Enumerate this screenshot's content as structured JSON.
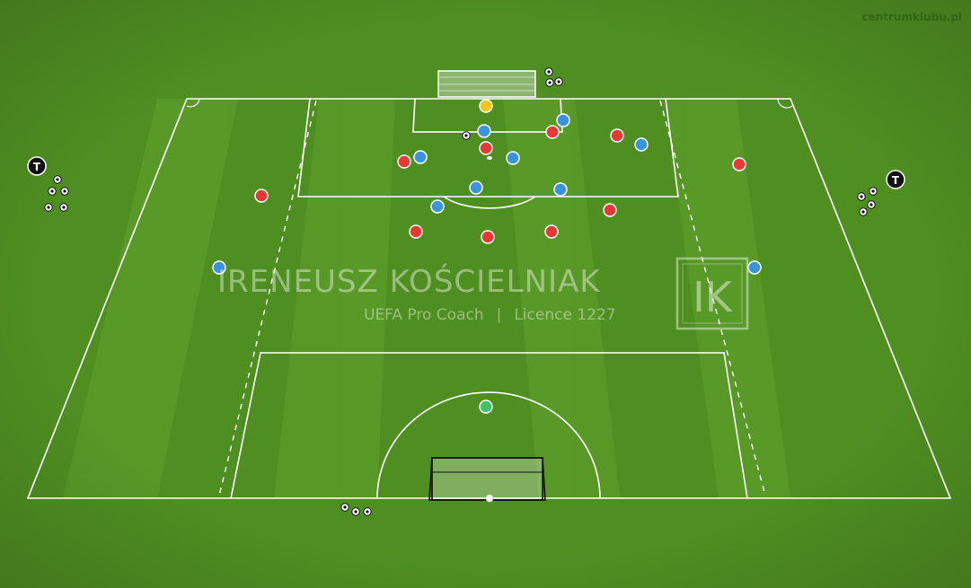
{
  "site_label": "centrumklubu.pl",
  "watermark": {
    "name": "IRENEUSZ KOŚCIELNIAK",
    "role": "UEFA Pro Coach",
    "separator": "|",
    "licence": "Licence 1227",
    "logo_text": "IK"
  },
  "trainer_marker_label": "T",
  "colors": {
    "grass": "#4f8f22",
    "grass_stripe_light": "#5fa02b",
    "line": "#ffffff",
    "team_red": "#e53935",
    "team_blue": "#3a94dd",
    "goalkeeper_yellow": "#f5c518",
    "goalkeeper_green": "#3cc46a",
    "trainer": "#111111"
  },
  "icons": [
    "ball-icon",
    "trainer-icon",
    "goal-icon",
    "player-marker"
  ]
}
